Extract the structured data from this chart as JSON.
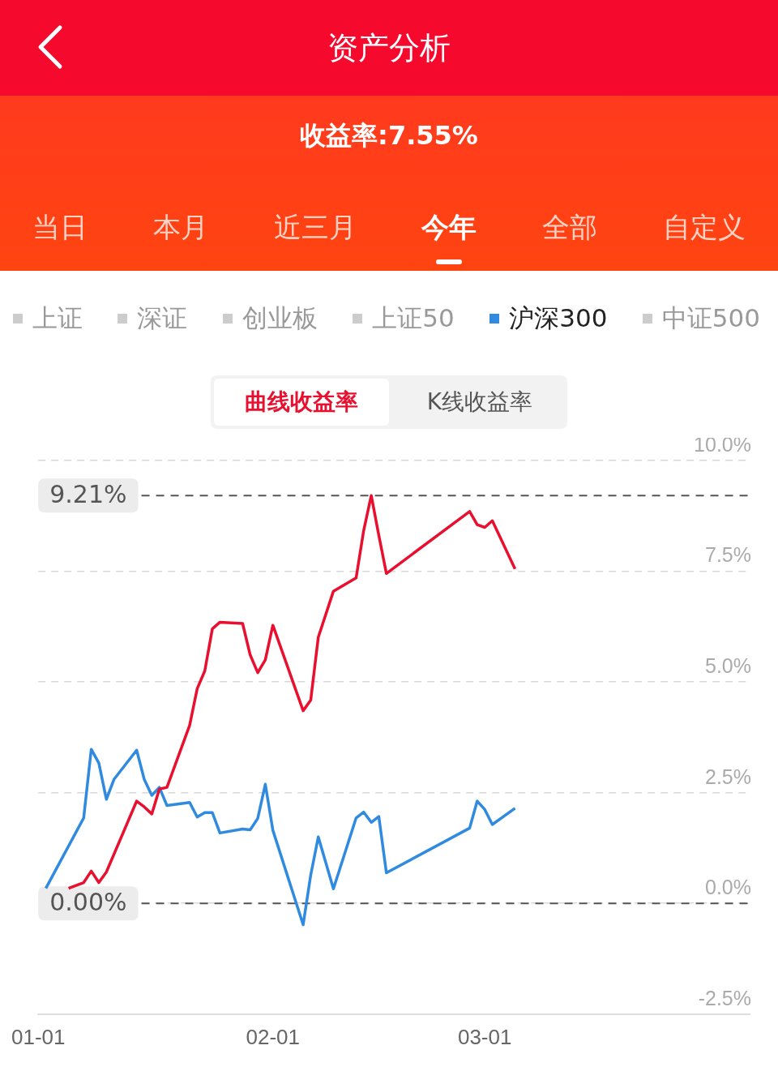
{
  "chart_data": {
    "type": "line",
    "title": "资产分析",
    "subtitle": "收益率:7.55%",
    "annotations": [
      "当日",
      "本月",
      "近三月",
      "今年",
      "全部",
      "自定义",
      "上证",
      "深证",
      "创业板",
      "上证50",
      "中证500",
      "曲线收益率",
      "K线收益率"
    ],
    "legend": "top",
    "grid": "y",
    "line_style": "solid",
    "xlim": [
      "--01-01",
      "--04-05"
    ],
    "xticks": [
      {
        "value": "--01-01",
        "label": "01-01"
      },
      {
        "value": "--02-01",
        "label": "02-01"
      },
      {
        "value": "--03-01",
        "label": "03-01"
      }
    ],
    "ylim": [
      -2.5,
      10
    ],
    "yticks": [
      {
        "value": -2.5,
        "label": "-2.5%"
      },
      {
        "value": 0,
        "label": "0.0%"
      },
      {
        "value": 2.5,
        "label": "2.5%"
      },
      {
        "value": 5,
        "label": "5.0%"
      },
      {
        "value": 7.5,
        "label": "7.5%"
      },
      {
        "value": 10,
        "label": "10.0%"
      }
    ],
    "ref_lines": [
      {
        "axis": "y",
        "value": 9.21,
        "label": "9.21%",
        "color": "#555555",
        "line_style": "dashed"
      },
      {
        "axis": "y",
        "value": 0,
        "label": "0.00%",
        "color": "#555555",
        "line_style": "dashed"
      }
    ],
    "series": [
      {
        "color": "#e8102e",
        "x": [
          "--01-05",
          "--01-07",
          "--01-08",
          "--01-09",
          "--01-10",
          "--01-14",
          "--01-15",
          "--01-16",
          "--01-17",
          "--01-18",
          "--01-21",
          "--01-22",
          "--01-23",
          "--01-24",
          "--01-25",
          "--01-28",
          "--01-29",
          "--01-30",
          "--01-31",
          "--02-01",
          "--02-05",
          "--02-06",
          "--02-07",
          "--02-09",
          "--02-12",
          "--02-13",
          "--02-14",
          "--02-15",
          "--02-16",
          "--02-27",
          "--02-28",
          "--03-01",
          "--03-02",
          "--03-05"
        ],
        "values": [
          0.34,
          0.47,
          0.73,
          0.47,
          0.71,
          2.31,
          2.18,
          2.02,
          2.58,
          2.62,
          4.02,
          4.85,
          5.25,
          6.2,
          6.35,
          6.32,
          5.61,
          5.21,
          5.5,
          6.28,
          4.35,
          4.59,
          6.01,
          7.05,
          7.35,
          8.42,
          9.21,
          8.31,
          7.45,
          8.85,
          8.55,
          8.49,
          8.64,
          7.55
        ]
      },
      {
        "name": "沪深300",
        "color": "#2f8ae0",
        "x": [
          "--01-02",
          "--01-07",
          "--01-08",
          "--01-09",
          "--01-10",
          "--01-11",
          "--01-14",
          "--01-15",
          "--01-16",
          "--01-17",
          "--01-18",
          "--01-21",
          "--01-22",
          "--01-23",
          "--01-24",
          "--01-25",
          "--01-28",
          "--01-29",
          "--01-30",
          "--01-31",
          "--02-01",
          "--02-05",
          "--02-06",
          "--02-07",
          "--02-09",
          "--02-12",
          "--02-13",
          "--02-14",
          "--02-15",
          "--02-16",
          "--02-27",
          "--02-28",
          "--03-01",
          "--03-02",
          "--03-05"
        ],
        "values": [
          0.34,
          1.93,
          3.48,
          3.17,
          2.35,
          2.8,
          3.46,
          2.8,
          2.44,
          2.62,
          2.21,
          2.28,
          1.95,
          2.05,
          2.05,
          1.59,
          1.68,
          1.66,
          1.92,
          2.69,
          1.65,
          -0.48,
          0.64,
          1.5,
          0.33,
          1.93,
          2.06,
          1.83,
          1.96,
          0.69,
          1.7,
          2.31,
          2.12,
          1.78,
          2.15
        ]
      }
    ]
  }
}
